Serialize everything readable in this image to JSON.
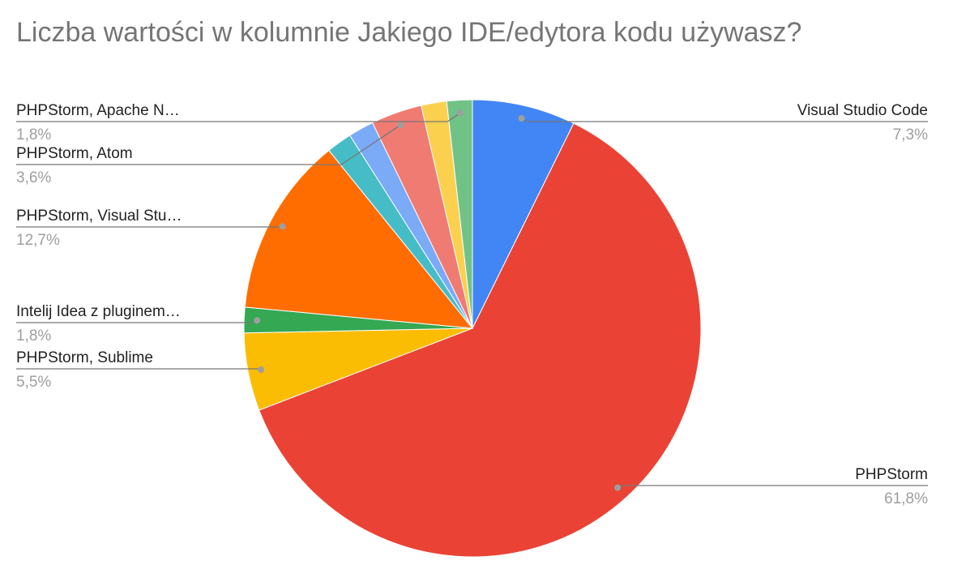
{
  "chart_data": {
    "type": "pie",
    "title": "Liczba wartości w kolumnie Jakiego IDE/edytora kodu używasz?",
    "categories": [
      "Visual Studio Code",
      "PHPStorm",
      "PHPStorm, Sublime",
      "Intelij Idea z pluginem…",
      "PHPStorm, Visual Stu…",
      null,
      null,
      "PHPStorm, Atom",
      null,
      "PHPStorm, Apache N…"
    ],
    "values": [
      7.3,
      61.8,
      5.5,
      1.8,
      12.7,
      1.8,
      1.8,
      3.6,
      1.8,
      1.8
    ],
    "value_labels": [
      "7,3%",
      "61,8%",
      "5,5%",
      "1,8%",
      "12,7%",
      null,
      null,
      "3,6%",
      null,
      "1,8%"
    ],
    "colors": [
      "#4285f4",
      "#ea4335",
      "#fbbc04",
      "#34a853",
      "#ff6d01",
      "#46bdc6",
      "#7baaf7",
      "#f07b72",
      "#fcd04f",
      "#71c287"
    ]
  }
}
